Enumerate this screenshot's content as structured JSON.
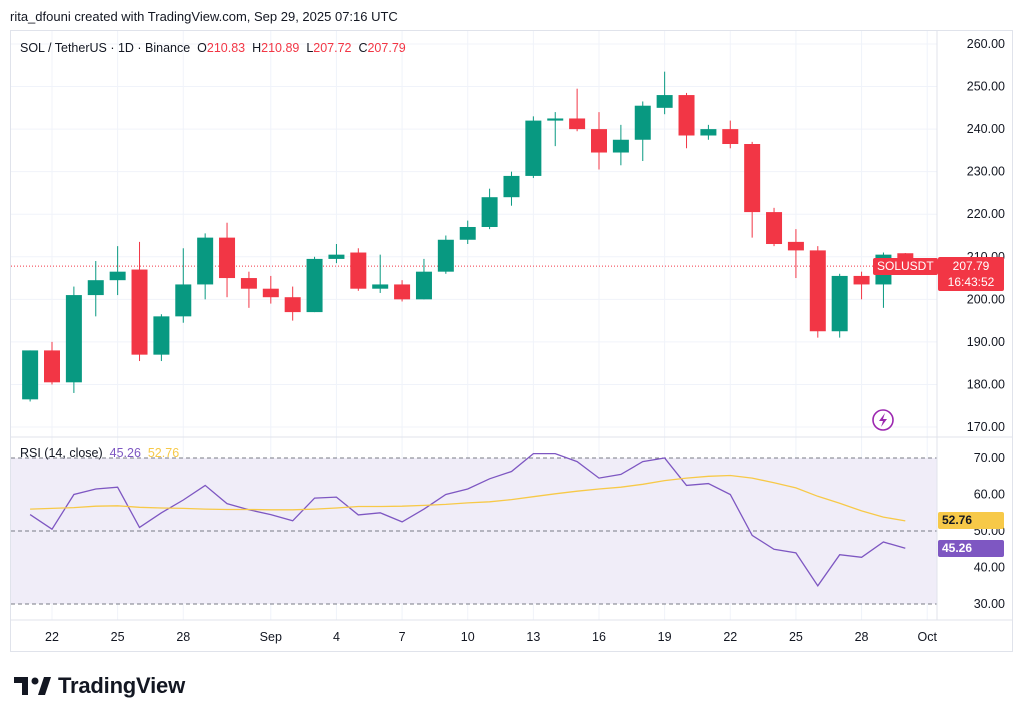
{
  "header": {
    "caption": "rita_dfouni created with TradingView.com, Sep 29, 2025 07:16 UTC"
  },
  "legend": {
    "symbol": "SOL / TetherUS · 1D · Binance",
    "o_label": "O",
    "o_value": "210.83",
    "h_label": "H",
    "h_value": "210.89",
    "l_label": "L",
    "l_value": "207.72",
    "c_label": "C",
    "c_value": "207.79"
  },
  "price_tag": {
    "symbol": "SOLUSDT",
    "price": "207.79",
    "countdown": "16:43:52"
  },
  "rsi_legend": {
    "label": "RSI (14, close)",
    "rsi_value": "45.26",
    "ma_value": "52.76"
  },
  "rsi_tags": {
    "ma": "52.76",
    "rsi": "45.26"
  },
  "brand": {
    "name": "TradingView"
  },
  "colors": {
    "up": "#089981",
    "down": "#f23645",
    "rsi": "#7e57c2",
    "rsi_ma": "#f7c948",
    "band": "#f0edf8"
  },
  "chart_data": [
    {
      "type": "candlestick",
      "title": "SOL / TetherUS · 1D · Binance",
      "ylim": [
        165,
        263
      ],
      "y_ticks": [
        170,
        180,
        190,
        200,
        210,
        220,
        230,
        240,
        250,
        260
      ],
      "x_ticks": [
        {
          "label": "22",
          "day": 0
        },
        {
          "label": "25",
          "day": 3
        },
        {
          "label": "28",
          "day": 6
        },
        {
          "label": "Sep",
          "day": 10
        },
        {
          "label": "4",
          "day": 13
        },
        {
          "label": "7",
          "day": 16
        },
        {
          "label": "10",
          "day": 19
        },
        {
          "label": "13",
          "day": 22
        },
        {
          "label": "16",
          "day": 25
        },
        {
          "label": "19",
          "day": 28
        },
        {
          "label": "22",
          "day": 31
        },
        {
          "label": "25",
          "day": 34
        },
        {
          "label": "28",
          "day": 37
        },
        {
          "label": "Oct",
          "day": 40
        }
      ],
      "candles": [
        {
          "day": -1,
          "o": 176.5,
          "h": 188.0,
          "l": 176.0,
          "c": 188.0
        },
        {
          "day": 0,
          "o": 188.0,
          "h": 190.0,
          "l": 180.0,
          "c": 180.5
        },
        {
          "day": 1,
          "o": 180.5,
          "h": 203.0,
          "l": 178.0,
          "c": 201.0
        },
        {
          "day": 2,
          "o": 201.0,
          "h": 209.0,
          "l": 196.0,
          "c": 204.5
        },
        {
          "day": 3,
          "o": 204.5,
          "h": 212.5,
          "l": 201.0,
          "c": 206.5
        },
        {
          "day": 4,
          "o": 207.0,
          "h": 213.5,
          "l": 185.5,
          "c": 187.0
        },
        {
          "day": 5,
          "o": 187.0,
          "h": 196.5,
          "l": 185.5,
          "c": 196.0
        },
        {
          "day": 6,
          "o": 196.0,
          "h": 212.0,
          "l": 194.5,
          "c": 203.5
        },
        {
          "day": 7,
          "o": 203.5,
          "h": 215.5,
          "l": 200.0,
          "c": 214.5
        },
        {
          "day": 8,
          "o": 214.5,
          "h": 218.0,
          "l": 200.5,
          "c": 205.0
        },
        {
          "day": 9,
          "o": 205.0,
          "h": 206.5,
          "l": 198.0,
          "c": 202.5
        },
        {
          "day": 10,
          "o": 202.5,
          "h": 205.5,
          "l": 199.0,
          "c": 200.5
        },
        {
          "day": 11,
          "o": 200.5,
          "h": 203.0,
          "l": 195.0,
          "c": 197.0
        },
        {
          "day": 12,
          "o": 197.0,
          "h": 210.0,
          "l": 197.0,
          "c": 209.5
        },
        {
          "day": 13,
          "o": 209.5,
          "h": 213.0,
          "l": 208.5,
          "c": 210.5
        },
        {
          "day": 14,
          "o": 211.0,
          "h": 212.0,
          "l": 202.0,
          "c": 202.5
        },
        {
          "day": 15,
          "o": 202.5,
          "h": 210.5,
          "l": 201.5,
          "c": 203.5
        },
        {
          "day": 16,
          "o": 203.5,
          "h": 204.5,
          "l": 199.5,
          "c": 200.0
        },
        {
          "day": 17,
          "o": 200.0,
          "h": 209.5,
          "l": 200.0,
          "c": 206.5
        },
        {
          "day": 18,
          "o": 206.5,
          "h": 215.0,
          "l": 206.0,
          "c": 214.0
        },
        {
          "day": 19,
          "o": 214.0,
          "h": 218.5,
          "l": 213.0,
          "c": 217.0
        },
        {
          "day": 20,
          "o": 217.0,
          "h": 226.0,
          "l": 216.5,
          "c": 224.0
        },
        {
          "day": 21,
          "o": 224.0,
          "h": 230.0,
          "l": 222.0,
          "c": 229.0
        },
        {
          "day": 22,
          "o": 229.0,
          "h": 243.0,
          "l": 228.5,
          "c": 242.0
        },
        {
          "day": 23,
          "o": 242.0,
          "h": 244.0,
          "l": 236.0,
          "c": 242.5
        },
        {
          "day": 24,
          "o": 242.5,
          "h": 249.5,
          "l": 239.5,
          "c": 240.0
        },
        {
          "day": 25,
          "o": 240.0,
          "h": 244.0,
          "l": 230.5,
          "c": 234.5
        },
        {
          "day": 26,
          "o": 234.5,
          "h": 241.0,
          "l": 231.5,
          "c": 237.5
        },
        {
          "day": 27,
          "o": 237.5,
          "h": 246.5,
          "l": 232.5,
          "c": 245.5
        },
        {
          "day": 28,
          "o": 245.0,
          "h": 253.5,
          "l": 243.5,
          "c": 248.0
        },
        {
          "day": 29,
          "o": 248.0,
          "h": 248.5,
          "l": 235.5,
          "c": 238.5
        },
        {
          "day": 30,
          "o": 238.5,
          "h": 241.0,
          "l": 237.5,
          "c": 240.0
        },
        {
          "day": 31,
          "o": 240.0,
          "h": 242.0,
          "l": 235.5,
          "c": 236.5
        },
        {
          "day": 32,
          "o": 236.5,
          "h": 237.0,
          "l": 214.5,
          "c": 220.5
        },
        {
          "day": 33,
          "o": 220.5,
          "h": 221.5,
          "l": 212.5,
          "c": 213.0
        },
        {
          "day": 34,
          "o": 213.5,
          "h": 216.5,
          "l": 205.0,
          "c": 211.5
        },
        {
          "day": 35,
          "o": 211.5,
          "h": 212.5,
          "l": 191.0,
          "c": 192.5
        },
        {
          "day": 36,
          "o": 192.5,
          "h": 206.0,
          "l": 191.0,
          "c": 205.5
        },
        {
          "day": 37,
          "o": 205.5,
          "h": 206.5,
          "l": 200.0,
          "c": 203.5
        },
        {
          "day": 38,
          "o": 203.5,
          "h": 211.0,
          "l": 198.0,
          "c": 210.5
        },
        {
          "day": 39,
          "o": 210.83,
          "h": 210.89,
          "l": 207.72,
          "c": 207.79
        }
      ]
    },
    {
      "type": "line",
      "title": "RSI (14, close)",
      "ylim": [
        28,
        72
      ],
      "y_ticks": [
        30,
        40,
        50,
        60,
        70
      ],
      "levels": [
        30,
        50,
        70
      ],
      "series": [
        {
          "name": "RSI",
          "color": "#7e57c2",
          "days": [
            -1,
            0,
            1,
            2,
            3,
            4,
            5,
            6,
            7,
            8,
            9,
            10,
            11,
            12,
            13,
            14,
            15,
            16,
            17,
            18,
            19,
            20,
            21,
            22,
            23,
            24,
            25,
            26,
            27,
            28,
            29,
            30,
            31,
            32,
            33,
            34,
            35,
            36,
            37,
            38,
            39
          ],
          "values": [
            54.5,
            50.5,
            60.0,
            61.5,
            62.0,
            51.0,
            55.0,
            58.5,
            62.5,
            57.5,
            55.8,
            54.5,
            52.8,
            59.0,
            59.3,
            54.4,
            55.0,
            52.5,
            56.0,
            60.0,
            61.5,
            64.3,
            66.3,
            71.2,
            71.2,
            69.0,
            64.5,
            65.5,
            69.0,
            70.0,
            62.5,
            63.0,
            60.0,
            48.8,
            45.0,
            44.0,
            35.0,
            43.5,
            42.8,
            47.0,
            45.26
          ]
        },
        {
          "name": "RSI-based MA",
          "color": "#f7c948",
          "days": [
            -1,
            0,
            1,
            2,
            3,
            4,
            5,
            6,
            7,
            8,
            9,
            10,
            11,
            12,
            13,
            14,
            15,
            16,
            17,
            18,
            19,
            20,
            21,
            22,
            23,
            24,
            25,
            26,
            27,
            28,
            29,
            30,
            31,
            32,
            33,
            34,
            35,
            36,
            37,
            38,
            39
          ],
          "values": [
            56.0,
            56.2,
            56.4,
            56.8,
            56.9,
            56.5,
            56.3,
            56.2,
            56.0,
            55.9,
            55.9,
            55.8,
            55.8,
            56.0,
            56.3,
            56.7,
            56.7,
            56.8,
            57.0,
            57.3,
            57.7,
            58.0,
            58.6,
            59.4,
            60.2,
            60.9,
            61.5,
            62.0,
            62.8,
            63.8,
            64.5,
            65.0,
            65.2,
            64.5,
            63.2,
            61.8,
            59.5,
            57.6,
            55.5,
            53.8,
            52.76
          ]
        }
      ]
    }
  ]
}
